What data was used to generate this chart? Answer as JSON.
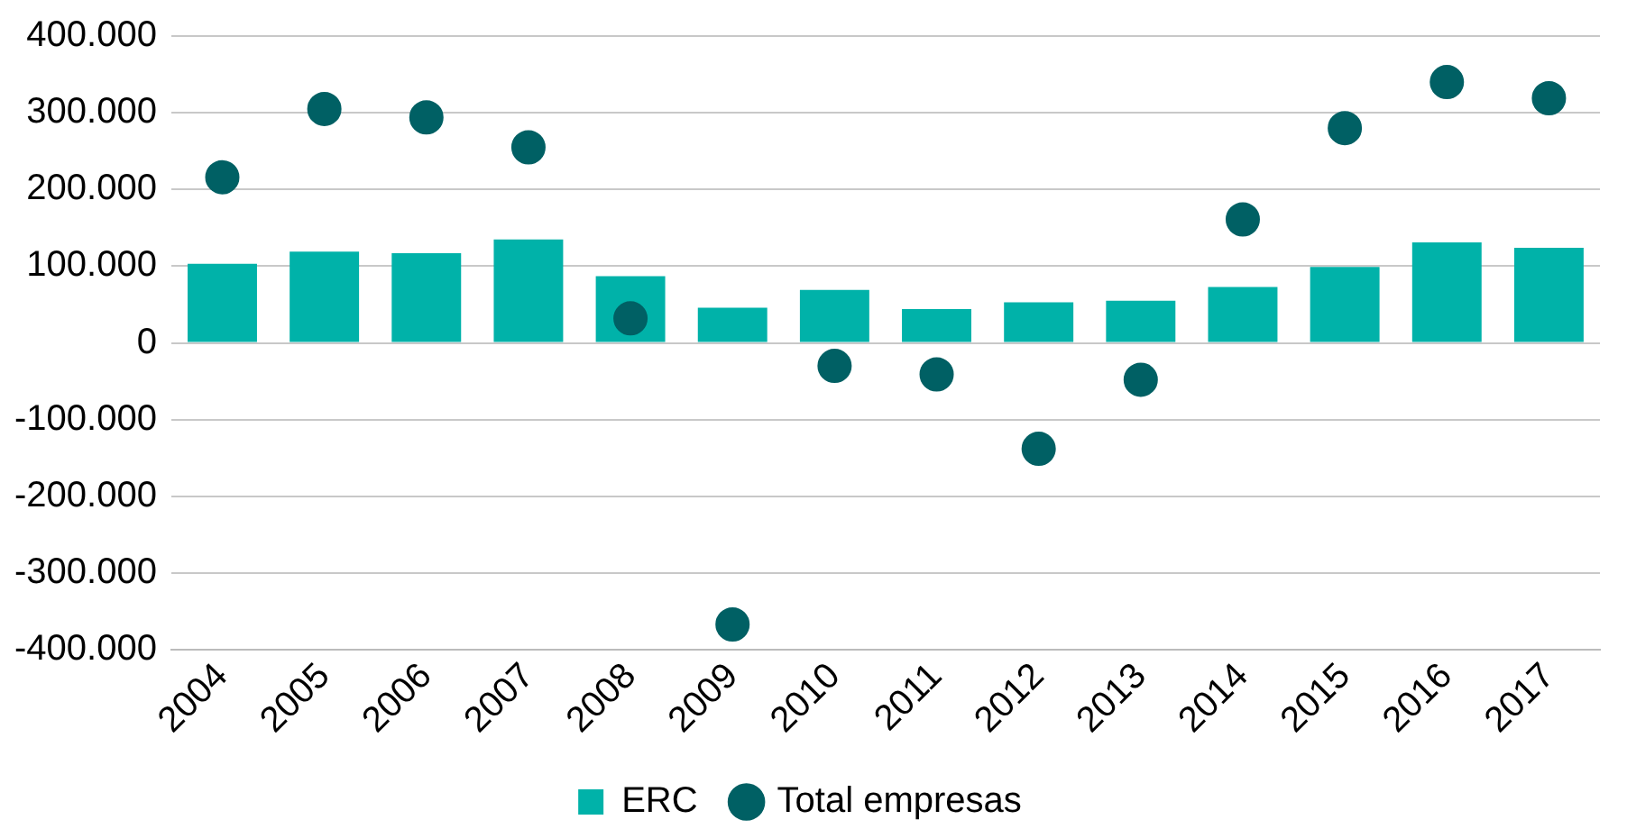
{
  "chart_data": {
    "type": "bar",
    "categories": [
      "2004",
      "2005",
      "2006",
      "2007",
      "2008",
      "2009",
      "2010",
      "2011",
      "2012",
      "2013",
      "2014",
      "2015",
      "2016",
      "2017"
    ],
    "series": [
      {
        "name": "ERC",
        "color": "#00b2a9",
        "values": [
          103000,
          119000,
          117000,
          135000,
          87000,
          46000,
          69000,
          44000,
          53000,
          55000,
          73000,
          99000,
          131000,
          124000
        ]
      },
      {
        "name": "Total empresas",
        "type": "scatter",
        "color": "#006064",
        "values": [
          216000,
          305000,
          294000,
          255000,
          32000,
          -367000,
          -30000,
          -41000,
          -138000,
          -48000,
          161000,
          280000,
          340000,
          319000
        ]
      }
    ],
    "ylim": [
      -400000,
      400000
    ],
    "yticks": [
      {
        "value": -400000,
        "label": "-400.000"
      },
      {
        "value": -300000,
        "label": "-300.000"
      },
      {
        "value": -200000,
        "label": "-200.000"
      },
      {
        "value": -100000,
        "label": "-100.000"
      },
      {
        "value": 0,
        "label": "0"
      },
      {
        "value": 100000,
        "label": "100.000"
      },
      {
        "value": 200000,
        "label": "200.000"
      },
      {
        "value": 300000,
        "label": "300.000"
      },
      {
        "value": 400000,
        "label": "400.000"
      }
    ],
    "grid": "y",
    "legend": "bottom",
    "marker": "circle"
  }
}
